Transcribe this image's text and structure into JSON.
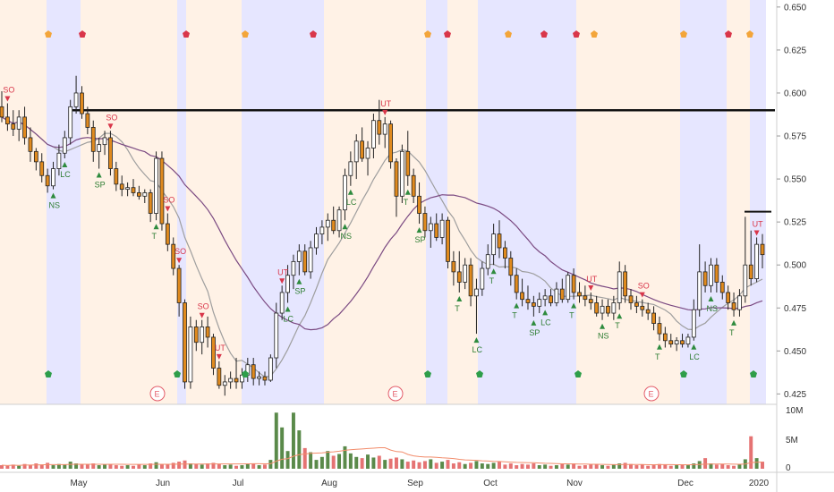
{
  "chart_data": {
    "type": "candlestick",
    "price_axis": {
      "ticks": [
        "0.650",
        "0.625",
        "0.600",
        "0.575",
        "0.550",
        "0.525",
        "0.500",
        "0.475",
        "0.450",
        "0.425"
      ],
      "ylim": [
        0.42,
        0.652
      ]
    },
    "volume_axis": {
      "ticks": [
        "10M",
        "5M",
        "0"
      ],
      "ylim": [
        0,
        10
      ]
    },
    "x_labels": [
      "May",
      "Jun",
      "Jul",
      "Aug",
      "Sep",
      "Oct",
      "Nov",
      "Dec",
      "2020"
    ],
    "resistance_line": 0.59,
    "upper_short_line": 0.531,
    "colors": {
      "up": "#ffffff",
      "down": "#e08a1e",
      "wick": "#222222",
      "ma_fast": "#9e9e9e",
      "ma_slow": "#7b4a82",
      "vol_up": "#5a8a4a",
      "vol_down": "#e57373",
      "bg_blue": "#e6e6ff",
      "bg_orange": "#fff2e6"
    },
    "signal_labels": [
      "SO",
      "NS",
      "LC",
      "SP",
      "T",
      "UT",
      "E"
    ],
    "series": [
      {
        "name": "price",
        "ohlc": [
          [
            0.592,
            0.601,
            0.583,
            0.586
          ],
          [
            0.586,
            0.594,
            0.578,
            0.582
          ],
          [
            0.582,
            0.59,
            0.575,
            0.579
          ],
          [
            0.579,
            0.59,
            0.572,
            0.586
          ],
          [
            0.586,
            0.592,
            0.57,
            0.574
          ],
          [
            0.574,
            0.58,
            0.56,
            0.566
          ],
          [
            0.566,
            0.568,
            0.555,
            0.56
          ],
          [
            0.56,
            0.565,
            0.548,
            0.552
          ],
          [
            0.552,
            0.556,
            0.542,
            0.546
          ],
          [
            0.546,
            0.56,
            0.544,
            0.556
          ],
          [
            0.556,
            0.57,
            0.552,
            0.565
          ],
          [
            0.565,
            0.578,
            0.562,
            0.574
          ],
          [
            0.574,
            0.596,
            0.57,
            0.592
          ],
          [
            0.592,
            0.61,
            0.588,
            0.6
          ],
          [
            0.6,
            0.604,
            0.585,
            0.588
          ],
          [
            0.588,
            0.592,
            0.576,
            0.58
          ],
          [
            0.58,
            0.584,
            0.56,
            0.566
          ],
          [
            0.566,
            0.574,
            0.556,
            0.57
          ],
          [
            0.57,
            0.578,
            0.564,
            0.574
          ],
          [
            0.574,
            0.578,
            0.552,
            0.556
          ],
          [
            0.556,
            0.56,
            0.543,
            0.547
          ],
          [
            0.547,
            0.552,
            0.54,
            0.544
          ],
          [
            0.544,
            0.548,
            0.54,
            0.545
          ],
          [
            0.545,
            0.55,
            0.54,
            0.542
          ],
          [
            0.542,
            0.546,
            0.538,
            0.54
          ],
          [
            0.54,
            0.544,
            0.536,
            0.542
          ],
          [
            0.542,
            0.544,
            0.525,
            0.53
          ],
          [
            0.53,
            0.566,
            0.526,
            0.562
          ],
          [
            0.562,
            0.566,
            0.52,
            0.524
          ],
          [
            0.524,
            0.53,
            0.508,
            0.512
          ],
          [
            0.512,
            0.516,
            0.494,
            0.498
          ],
          [
            0.498,
            0.5,
            0.47,
            0.478
          ],
          [
            0.478,
            0.48,
            0.428,
            0.432
          ],
          [
            0.432,
            0.47,
            0.428,
            0.464
          ],
          [
            0.464,
            0.468,
            0.45,
            0.455
          ],
          [
            0.455,
            0.468,
            0.448,
            0.464
          ],
          [
            0.464,
            0.47,
            0.452,
            0.458
          ],
          [
            0.458,
            0.46,
            0.436,
            0.44
          ],
          [
            0.44,
            0.444,
            0.428,
            0.43
          ],
          [
            0.43,
            0.436,
            0.424,
            0.432
          ],
          [
            0.432,
            0.438,
            0.428,
            0.434
          ],
          [
            0.434,
            0.446,
            0.428,
            0.432
          ],
          [
            0.432,
            0.44,
            0.428,
            0.436
          ],
          [
            0.436,
            0.446,
            0.432,
            0.442
          ],
          [
            0.442,
            0.446,
            0.43,
            0.434
          ],
          [
            0.434,
            0.438,
            0.43,
            0.435
          ],
          [
            0.435,
            0.438,
            0.43,
            0.433
          ],
          [
            0.433,
            0.448,
            0.432,
            0.446
          ],
          [
            0.446,
            0.478,
            0.44,
            0.472
          ],
          [
            0.472,
            0.488,
            0.468,
            0.484
          ],
          [
            0.484,
            0.5,
            0.478,
            0.494
          ],
          [
            0.494,
            0.506,
            0.486,
            0.502
          ],
          [
            0.502,
            0.512,
            0.494,
            0.508
          ],
          [
            0.508,
            0.512,
            0.494,
            0.496
          ],
          [
            0.496,
            0.514,
            0.492,
            0.51
          ],
          [
            0.51,
            0.522,
            0.506,
            0.518
          ],
          [
            0.518,
            0.526,
            0.512,
            0.522
          ],
          [
            0.522,
            0.53,
            0.514,
            0.526
          ],
          [
            0.526,
            0.534,
            0.518,
            0.52
          ],
          [
            0.52,
            0.534,
            0.516,
            0.532
          ],
          [
            0.532,
            0.556,
            0.526,
            0.552
          ],
          [
            0.552,
            0.566,
            0.546,
            0.56
          ],
          [
            0.56,
            0.576,
            0.55,
            0.572
          ],
          [
            0.572,
            0.58,
            0.56,
            0.562
          ],
          [
            0.562,
            0.572,
            0.552,
            0.568
          ],
          [
            0.568,
            0.588,
            0.562,
            0.584
          ],
          [
            0.584,
            0.596,
            0.57,
            0.576
          ],
          [
            0.576,
            0.586,
            0.568,
            0.582
          ],
          [
            0.582,
            0.584,
            0.556,
            0.56
          ],
          [
            0.56,
            0.562,
            0.528,
            0.54
          ],
          [
            0.54,
            0.57,
            0.536,
            0.566
          ],
          [
            0.566,
            0.578,
            0.546,
            0.552
          ],
          [
            0.552,
            0.556,
            0.536,
            0.54
          ],
          [
            0.54,
            0.548,
            0.524,
            0.53
          ],
          [
            0.53,
            0.534,
            0.516,
            0.52
          ],
          [
            0.52,
            0.528,
            0.51,
            0.524
          ],
          [
            0.524,
            0.53,
            0.514,
            0.516
          ],
          [
            0.516,
            0.53,
            0.512,
            0.526
          ],
          [
            0.526,
            0.528,
            0.498,
            0.502
          ],
          [
            0.502,
            0.508,
            0.488,
            0.496
          ],
          [
            0.496,
            0.508,
            0.484,
            0.49
          ],
          [
            0.49,
            0.504,
            0.486,
            0.5
          ],
          [
            0.5,
            0.504,
            0.476,
            0.482
          ],
          [
            0.482,
            0.492,
            0.46,
            0.486
          ],
          [
            0.486,
            0.502,
            0.482,
            0.498
          ],
          [
            0.498,
            0.512,
            0.494,
            0.506
          ],
          [
            0.506,
            0.524,
            0.5,
            0.518
          ],
          [
            0.518,
            0.526,
            0.504,
            0.51
          ],
          [
            0.51,
            0.514,
            0.498,
            0.504
          ],
          [
            0.504,
            0.508,
            0.488,
            0.494
          ],
          [
            0.494,
            0.498,
            0.48,
            0.484
          ],
          [
            0.484,
            0.492,
            0.476,
            0.48
          ],
          [
            0.48,
            0.488,
            0.474,
            0.478
          ],
          [
            0.478,
            0.482,
            0.47,
            0.476
          ],
          [
            0.476,
            0.484,
            0.472,
            0.48
          ],
          [
            0.48,
            0.486,
            0.476,
            0.482
          ],
          [
            0.482,
            0.486,
            0.476,
            0.478
          ],
          [
            0.478,
            0.49,
            0.476,
            0.486
          ],
          [
            0.486,
            0.492,
            0.478,
            0.48
          ],
          [
            0.48,
            0.496,
            0.478,
            0.494
          ],
          [
            0.494,
            0.498,
            0.48,
            0.484
          ],
          [
            0.484,
            0.49,
            0.478,
            0.482
          ],
          [
            0.482,
            0.488,
            0.476,
            0.48
          ],
          [
            0.48,
            0.484,
            0.474,
            0.478
          ],
          [
            0.478,
            0.482,
            0.47,
            0.472
          ],
          [
            0.472,
            0.48,
            0.468,
            0.476
          ],
          [
            0.476,
            0.48,
            0.47,
            0.472
          ],
          [
            0.472,
            0.482,
            0.468,
            0.478
          ],
          [
            0.478,
            0.502,
            0.474,
            0.496
          ],
          [
            0.496,
            0.5,
            0.478,
            0.482
          ],
          [
            0.482,
            0.486,
            0.474,
            0.478
          ],
          [
            0.478,
            0.482,
            0.472,
            0.476
          ],
          [
            0.476,
            0.48,
            0.47,
            0.474
          ],
          [
            0.474,
            0.478,
            0.468,
            0.472
          ],
          [
            0.472,
            0.476,
            0.462,
            0.466
          ],
          [
            0.466,
            0.47,
            0.456,
            0.46
          ],
          [
            0.46,
            0.464,
            0.452,
            0.456
          ],
          [
            0.456,
            0.46,
            0.452,
            0.454
          ],
          [
            0.454,
            0.458,
            0.45,
            0.456
          ],
          [
            0.456,
            0.46,
            0.452,
            0.454
          ],
          [
            0.454,
            0.46,
            0.452,
            0.458
          ],
          [
            0.458,
            0.48,
            0.456,
            0.474
          ],
          [
            0.474,
            0.512,
            0.47,
            0.496
          ],
          [
            0.496,
            0.502,
            0.484,
            0.488
          ],
          [
            0.488,
            0.504,
            0.484,
            0.5
          ],
          [
            0.5,
            0.504,
            0.484,
            0.49
          ],
          [
            0.49,
            0.494,
            0.48,
            0.484
          ],
          [
            0.484,
            0.488,
            0.474,
            0.478
          ],
          [
            0.478,
            0.484,
            0.47,
            0.474
          ],
          [
            0.474,
            0.486,
            0.47,
            0.482
          ],
          [
            0.482,
            0.528,
            0.478,
            0.5
          ],
          [
            0.5,
            0.52,
            0.488,
            0.492
          ],
          [
            0.492,
            0.516,
            0.49,
            0.512
          ],
          [
            0.512,
            0.518,
            0.498,
            0.506
          ]
        ]
      },
      {
        "name": "volume",
        "values": [
          0.6,
          0.5,
          0.7,
          0.5,
          0.8,
          0.6,
          0.9,
          0.7,
          1.0,
          0.6,
          0.8,
          0.7,
          1.2,
          0.9,
          0.8,
          0.7,
          0.9,
          0.6,
          0.7,
          0.8,
          0.6,
          0.5,
          0.6,
          0.5,
          0.7,
          0.6,
          0.9,
          1.1,
          0.8,
          0.7,
          1.0,
          1.2,
          1.4,
          0.9,
          0.8,
          0.7,
          0.9,
          1.0,
          0.8,
          0.6,
          0.7,
          0.5,
          0.6,
          0.8,
          0.9,
          0.6,
          0.7,
          1.5,
          9.5,
          7.0,
          3.0,
          9.5,
          6.5,
          3.5,
          2.8,
          1.5,
          2.0,
          3.0,
          2.2,
          2.5,
          3.8,
          2.6,
          2.0,
          1.8,
          2.4,
          1.9,
          2.2,
          1.5,
          1.7,
          1.9,
          1.6,
          1.2,
          1.4,
          1.1,
          1.3,
          1.6,
          1.0,
          1.2,
          1.5,
          0.9,
          1.1,
          0.8,
          1.0,
          1.3,
          0.9,
          0.8,
          1.0,
          1.2,
          0.7,
          0.9,
          0.6,
          0.8,
          0.7,
          0.9,
          0.6,
          0.7,
          0.5,
          0.6,
          0.8,
          0.7,
          0.9,
          0.5,
          0.6,
          0.7,
          0.8,
          0.6,
          0.5,
          0.7,
          0.9,
          1.0,
          0.8,
          0.6,
          0.7,
          0.5,
          0.6,
          0.8,
          0.7,
          0.5,
          0.6,
          0.7,
          0.6,
          0.9,
          1.3,
          1.8,
          0.9,
          0.7,
          0.8,
          0.6,
          0.5,
          0.7,
          1.6,
          5.5,
          1.8,
          1.2
        ]
      }
    ]
  }
}
